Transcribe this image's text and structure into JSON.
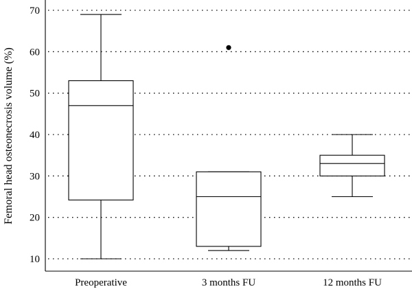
{
  "chart_data": {
    "type": "box",
    "ylabel": "Femoral head osteonecrosis volume (%)",
    "xlabel": "",
    "title": "",
    "ylim": [
      9,
      71
    ],
    "yticks": [
      10,
      20,
      30,
      40,
      50,
      60,
      70
    ],
    "grid": "horizontal-dotted",
    "categories": [
      "Preoperative",
      "3 months FU",
      "12 months FU"
    ],
    "boxes": [
      {
        "category": "Preoperative",
        "whisker_low": 10,
        "q1": 24.2,
        "median": 47,
        "q3": 53,
        "whisker_high": 69,
        "outliers": []
      },
      {
        "category": "3 months FU",
        "whisker_low": 12,
        "q1": 13,
        "median": 25,
        "q3": 31,
        "whisker_high": 31,
        "outliers": [
          61
        ]
      },
      {
        "category": "12 months FU",
        "whisker_low": 25,
        "q1": 30,
        "median": 33,
        "q3": 35,
        "whisker_high": 40,
        "outliers": []
      }
    ]
  }
}
